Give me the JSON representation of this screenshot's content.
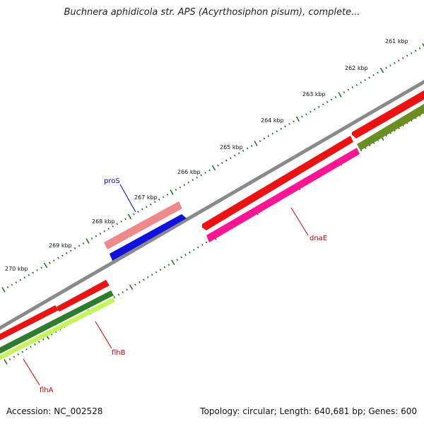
{
  "title": "Buchnera aphidicola str. APS (Acyrthosiphon pisum), complete...",
  "footer": {
    "accession": "Accession: NC_002528",
    "summary": "Topology: circular; Length: 640,681 bp; Genes: 600"
  },
  "colors": {
    "backbone": "#8a8a8a",
    "ticks": "#1a7a1a",
    "forward_cds": "#ee1111",
    "reverse_cds_outer": "#6b8e23",
    "reverse_cds_light": "#c6f55a",
    "pros_bar": "#f08a8a",
    "pros_gene": "#1010e0",
    "dnaE_bar": "#ff1493",
    "label_red": "#cc0000",
    "label_blue": "#0000cc"
  },
  "tick_labels": [
    "261 kbp",
    "262 kbp",
    "263 kbp",
    "264 kbp",
    "265 kbp",
    "266 kbp",
    "267 kbp",
    "268 kbp",
    "269 kbp",
    "270 kbp"
  ],
  "gene_labels": {
    "proS": "proS",
    "dnaE": "dnaE",
    "flhB": "flhB",
    "flhA": "flhA"
  }
}
